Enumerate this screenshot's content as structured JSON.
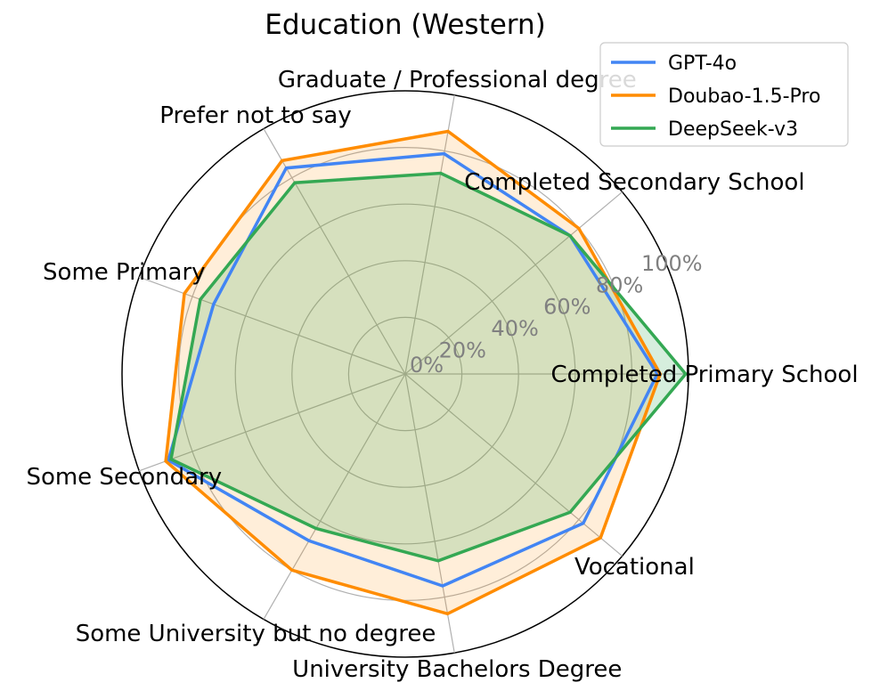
{
  "chart_data": {
    "type": "radar",
    "title": "Education (Western)",
    "categories": [
      "Completed Primary School",
      "Completed Secondary School",
      "Graduate / Professional degree",
      "Prefer not to say",
      "Some Primary",
      "Some Secondary",
      "Some University but no degree",
      "University Bachelors Degree",
      "Vocational"
    ],
    "rlim": [
      0,
      100
    ],
    "r_ticks": [
      0,
      20,
      40,
      60,
      80,
      100
    ],
    "r_tick_labels": [
      "0%",
      "20%",
      "40%",
      "60%",
      "80%",
      "100%"
    ],
    "grid": true,
    "legend_position": "top-right",
    "series": [
      {
        "name": "GPT-4o",
        "color": "#4285f4",
        "fill": false,
        "values": [
          89,
          76,
          79,
          84,
          72,
          89,
          68,
          76,
          82
        ]
      },
      {
        "name": "Doubao-1.5-Pro",
        "color": "#ff8c00",
        "fill": true,
        "fill_opacity": 0.15,
        "values": [
          90,
          80,
          87,
          87,
          83,
          90,
          80,
          86,
          90
        ]
      },
      {
        "name": "DeepSeek-v3",
        "color": "#34a853",
        "fill": true,
        "fill_opacity": 0.2,
        "values": [
          99,
          76,
          72,
          78,
          77,
          88,
          63,
          67,
          76
        ]
      }
    ]
  }
}
